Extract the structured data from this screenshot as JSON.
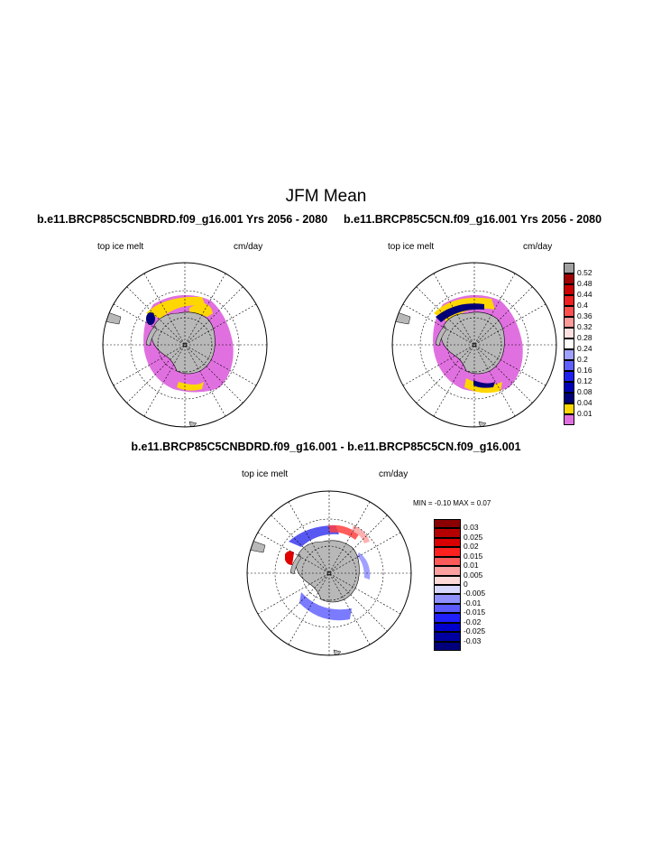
{
  "title": "JFM Mean",
  "panels": [
    {
      "title": "b.e11.BRCP85C5CNBDRD.f09_g16.001  Yrs 2056 - 2080",
      "left_label": "top ice melt",
      "right_label": "cm/day"
    },
    {
      "title": "b.e11.BRCP85C5CN.f09_g16.001  Yrs 2056 - 2080",
      "left_label": "top ice melt",
      "right_label": "cm/day"
    },
    {
      "title": "b.e11.BRCP85C5CNBDRD.f09_g16.001 - b.e11.BRCP85C5CN.f09_g16.001",
      "left_label": "top ice melt",
      "right_label": "cm/day",
      "stats": "MIN =  -0.10 MAX =   0.07"
    }
  ],
  "colorbar_top": {
    "labels": [
      "0.52",
      "0.48",
      "0.44",
      "0.4",
      "0.36",
      "0.32",
      "0.28",
      "0.24",
      "0.2",
      "0.16",
      "0.12",
      "0.08",
      "0.04",
      "0.01"
    ],
    "colors": [
      "#a0a0a0",
      "#a00000",
      "#cc0000",
      "#ee2020",
      "#ff5050",
      "#ff9a9a",
      "#ffe0e0",
      "#ffffff",
      "#a0a0ff",
      "#6060ff",
      "#2020ee",
      "#0000b8",
      "#00007a",
      "#ffd700",
      "#e070e0"
    ]
  },
  "colorbar_diff": {
    "labels": [
      "0.03",
      "0.025",
      "0.02",
      "0.015",
      "0.01",
      "0.005",
      "0",
      "-0.005",
      "-0.01",
      "-0.015",
      "-0.02",
      "-0.025",
      "-0.03"
    ],
    "colors": [
      "#8b0000",
      "#b40000",
      "#d80000",
      "#ff2020",
      "#ff5a5a",
      "#ffa0a0",
      "#ffd8d8",
      "#d8d8ff",
      "#9090ff",
      "#5a5aff",
      "#2020ff",
      "#0000cc",
      "#0000a0",
      "#00007a"
    ]
  }
}
